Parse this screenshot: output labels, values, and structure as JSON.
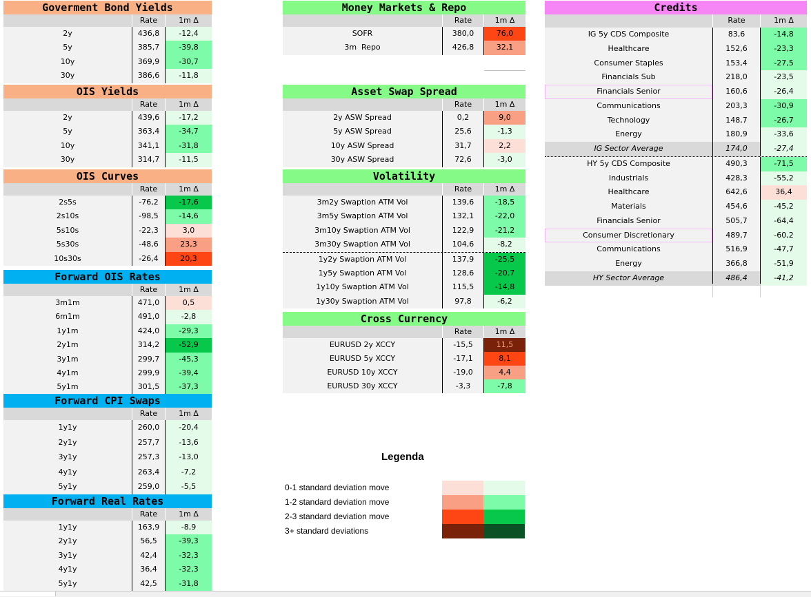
{
  "colors": {
    "red0": "#fce0d8",
    "red1": "#f89f84",
    "red2": "#fe4514",
    "red3": "#7a2209",
    "grn0": "#e5fbe9",
    "grn1": "#7dfba8",
    "grn2": "#08c84c",
    "grn3": "#0a5225",
    "hdr_orange": "#f8b084",
    "hdr_green": "#86fa86",
    "hdr_blue": "#00b0f0",
    "hdr_pink": "#f686f6"
  },
  "cols": {
    "rate": "Rate",
    "chg": "1m Δ"
  },
  "gov": {
    "title": "Goverment Bond Yields",
    "rows": [
      {
        "l": "2y",
        "r": "436,8",
        "c": "-12,4",
        "k": "grn0"
      },
      {
        "l": "5y",
        "r": "385,7",
        "c": "-39,8",
        "k": "grn1"
      },
      {
        "l": "10y",
        "r": "369,9",
        "c": "-30,7",
        "k": "grn1"
      },
      {
        "l": "30y",
        "r": "386,6",
        "c": "-11,8",
        "k": "grn0"
      }
    ]
  },
  "ois": {
    "title": "OIS Yields",
    "rows": [
      {
        "l": "2y",
        "r": "439,6",
        "c": "-17,2",
        "k": "grn0"
      },
      {
        "l": "5y",
        "r": "363,4",
        "c": "-34,7",
        "k": "grn1"
      },
      {
        "l": "10y",
        "r": "341,1",
        "c": "-31,8",
        "k": "grn1"
      },
      {
        "l": "30y",
        "r": "314,7",
        "c": "-11,5",
        "k": "grn0"
      }
    ]
  },
  "curves": {
    "title": "OIS Curves",
    "rows": [
      {
        "l": "2s5s",
        "r": "-76,2",
        "c": "-17,6",
        "k": "grn2"
      },
      {
        "l": "2s10s",
        "r": "-98,5",
        "c": "-14,6",
        "k": "grn1"
      },
      {
        "l": "5s10s",
        "r": "-22,3",
        "c": "3,0",
        "k": "red0"
      },
      {
        "l": "5s30s",
        "r": "-48,6",
        "c": "23,3",
        "k": "red1"
      },
      {
        "l": "10s30s",
        "r": "-26,4",
        "c": "20,3",
        "k": "red2"
      }
    ]
  },
  "fwdois": {
    "title": "Forward OIS Rates",
    "rows": [
      {
        "l": "3m1m",
        "r": "471,0",
        "c": "0,5",
        "k": "red0"
      },
      {
        "l": "6m1m",
        "r": "491,0",
        "c": "-2,8",
        "k": "grn0"
      },
      {
        "l": "1y1m",
        "r": "424,0",
        "c": "-29,3",
        "k": "grn1"
      },
      {
        "l": "2y1m",
        "r": "314,2",
        "c": "-52,9",
        "k": "grn2"
      },
      {
        "l": "3y1m",
        "r": "299,7",
        "c": "-45,3",
        "k": "grn1"
      },
      {
        "l": "4y1m",
        "r": "299,9",
        "c": "-39,4",
        "k": "grn1"
      },
      {
        "l": "5y1m",
        "r": "301,5",
        "c": "-37,3",
        "k": "grn1"
      }
    ]
  },
  "cpi": {
    "title": "Forward CPI Swaps",
    "rows": [
      {
        "l": "1y1y",
        "r": "260,0",
        "c": "-20,4",
        "k": "grn0"
      },
      {
        "l": "2y1y",
        "r": "257,7",
        "c": "-13,6",
        "k": "grn0"
      },
      {
        "l": "3y1y",
        "r": "257,3",
        "c": "-13,0",
        "k": "grn0"
      },
      {
        "l": "4y1y",
        "r": "263,4",
        "c": "-7,2",
        "k": "grn0"
      },
      {
        "l": "5y1y",
        "r": "259,0",
        "c": "-5,5",
        "k": "grn0"
      }
    ]
  },
  "real": {
    "title": "Forward Real Rates",
    "rows": [
      {
        "l": "1y1y",
        "r": "163,9",
        "c": "-8,9",
        "k": "grn0"
      },
      {
        "l": "2y1y",
        "r": "56,5",
        "c": "-39,3",
        "k": "grn1"
      },
      {
        "l": "3y1y",
        "r": "42,4",
        "c": "-32,3",
        "k": "grn1"
      },
      {
        "l": "4y1y",
        "r": "36,4",
        "c": "-32,3",
        "k": "grn1"
      },
      {
        "l": "5y1y",
        "r": "42,5",
        "c": "-31,8",
        "k": "grn1"
      }
    ]
  },
  "mm": {
    "title": "Money Markets & Repo",
    "rows": [
      {
        "l": "SOFR",
        "r": "380,0",
        "c": "76,0",
        "k": "red2"
      },
      {
        "l": "3m  Repo",
        "r": "426,8",
        "c": "32,1",
        "k": "red1"
      }
    ]
  },
  "asw": {
    "title": "Asset Swap Spread",
    "rows": [
      {
        "l": "2y ASW Spread",
        "r": "0,2",
        "c": "9,0",
        "k": "red1"
      },
      {
        "l": "5y ASW Spread",
        "r": "25,6",
        "c": "-1,3",
        "k": "grn0"
      },
      {
        "l": "10y ASW Spread",
        "r": "31,7",
        "c": "2,2",
        "k": "red0"
      },
      {
        "l": "30y ASW Spread",
        "r": "72,6",
        "c": "-3,0",
        "k": "grn0"
      }
    ]
  },
  "vol": {
    "title": "Volatility",
    "rows": [
      {
        "l": "3m2y Swaption ATM Vol",
        "r": "139,6",
        "c": "-18,5",
        "k": "grn1"
      },
      {
        "l": "3m5y Swaption ATM Vol",
        "r": "132,1",
        "c": "-22,0",
        "k": "grn1"
      },
      {
        "l": "3m10y Swaption ATM Vol",
        "r": "122,9",
        "c": "-21,2",
        "k": "grn1"
      },
      {
        "l": "3m30y Swaption ATM Vol",
        "r": "104,6",
        "c": "-8,2",
        "k": "grn0"
      },
      {
        "l": "1y2y Swaption ATM Vol",
        "r": "137,9",
        "c": "-25,5",
        "k": "grn2"
      },
      {
        "l": "1y5y Swaption ATM Vol",
        "r": "128,6",
        "c": "-20,7",
        "k": "grn2"
      },
      {
        "l": "1y10y Swaption ATM Vol",
        "r": "115,5",
        "c": "-14,8",
        "k": "grn2"
      },
      {
        "l": "1y30y Swaption ATM Vol",
        "r": "97,8",
        "c": "-6,2",
        "k": "grn0"
      }
    ]
  },
  "xccy": {
    "title": "Cross Currency",
    "rows": [
      {
        "l": "EURUSD 2y XCCY",
        "r": "-15,5",
        "c": "11,5",
        "k": "red3"
      },
      {
        "l": "EURUSD 5y XCCY",
        "r": "-17,1",
        "c": "8,1",
        "k": "red2"
      },
      {
        "l": "EURUSD 10y XCCY",
        "r": "-19,0",
        "c": "4,4",
        "k": "red1"
      },
      {
        "l": "EURUSD 30y XCCY",
        "r": "-3,3",
        "c": "-7,8",
        "k": "grn1"
      }
    ]
  },
  "credits": {
    "title": "Credits",
    "rows": [
      {
        "l": "IG 5y CDS Composite",
        "r": "83,6",
        "c": "-14,8",
        "k": "grn1"
      },
      {
        "l": "Healthcare",
        "r": "152,6",
        "c": "-23,3",
        "k": "grn1"
      },
      {
        "l": "Consumer Staples",
        "r": "153,4",
        "c": "-27,5",
        "k": "grn1"
      },
      {
        "l": "Financials Sub",
        "r": "218,0",
        "c": "-23,5",
        "k": "grn0"
      },
      {
        "l": "Financials Senior",
        "r": "160,6",
        "c": "-26,4",
        "k": "grn0"
      },
      {
        "l": "Communications",
        "r": "203,3",
        "c": "-30,9",
        "k": "grn1"
      },
      {
        "l": "Technology",
        "r": "148,7",
        "c": "-26,7",
        "k": "grn1"
      },
      {
        "l": "Energy",
        "r": "180,9",
        "c": "-33,6",
        "k": "grn0"
      },
      {
        "l": "IG Sector Average",
        "r": "174,0",
        "c": "-27,4",
        "k": "grn0"
      },
      {
        "l": "HY 5y CDS Composite",
        "r": "490,3",
        "c": "-71,5",
        "k": "grn1"
      },
      {
        "l": "Industrials",
        "r": "428,3",
        "c": "-55,2",
        "k": "grn0"
      },
      {
        "l": "Healthcare",
        "r": "642,6",
        "c": "36,4",
        "k": "red0"
      },
      {
        "l": "Materials",
        "r": "454,6",
        "c": "-45,2",
        "k": "grn0"
      },
      {
        "l": "Financials Senior",
        "r": "505,7",
        "c": "-64,4",
        "k": "grn0"
      },
      {
        "l": "Consumer Discretionary",
        "r": "489,7",
        "c": "-60,2",
        "k": "grn0"
      },
      {
        "l": "Communications",
        "r": "516,9",
        "c": "-47,7",
        "k": "grn0"
      },
      {
        "l": "Energy",
        "r": "366,8",
        "c": "-51,9",
        "k": "grn0"
      },
      {
        "l": "HY Sector Average",
        "r": "486,4",
        "c": "-41,2",
        "k": "grn0"
      }
    ]
  },
  "legend": {
    "title": "Legenda",
    "items": [
      {
        "label": "0-1 standard deviation move",
        "red": "red0",
        "grn": "grn0"
      },
      {
        "label": "1-2 standard deviation move",
        "red": "red1",
        "grn": "grn1"
      },
      {
        "label": "2-3 standard deviation move",
        "red": "red2",
        "grn": "grn2"
      },
      {
        "label": "3+ standard deviations",
        "red": "red3",
        "grn": "grn3"
      }
    ]
  }
}
